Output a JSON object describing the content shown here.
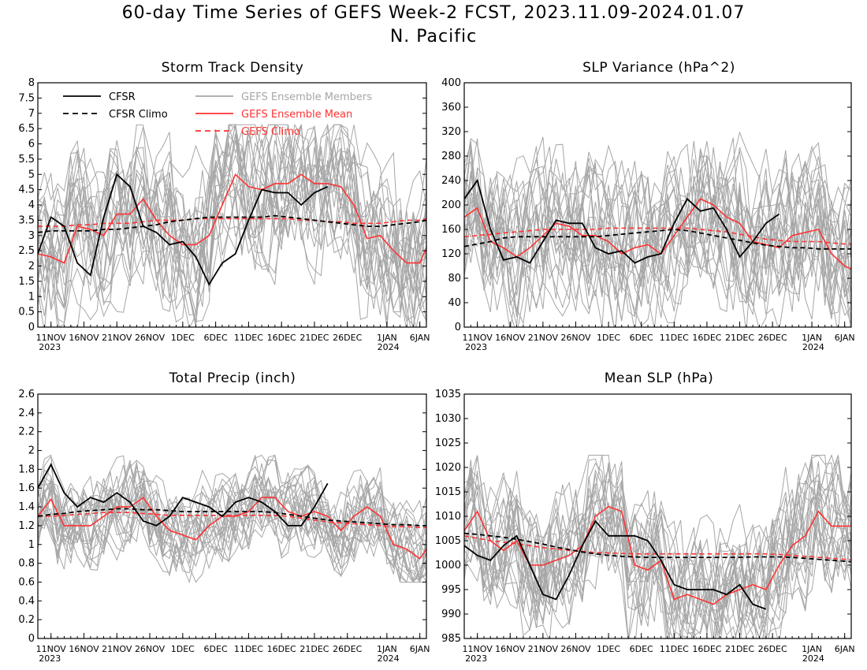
{
  "figure": {
    "title_line1": "60-day Time Series of GEFS Week-2 FCST, 2023.11.09-2024.01.07",
    "title_line2": "N. Pacific"
  },
  "colors": {
    "cfsr": "#000000",
    "ensemble_members": "#a6a6a6",
    "ensemble_mean": "#ff3333"
  },
  "x_axis": {
    "start_date": "2023-11-09",
    "end_date": "2024-01-07",
    "ticks": [
      {
        "date": "2023-11-11",
        "label": "11NOV",
        "year": "2023"
      },
      {
        "date": "2023-11-16",
        "label": "16NOV"
      },
      {
        "date": "2023-11-21",
        "label": "21NOV"
      },
      {
        "date": "2023-11-26",
        "label": "26NOV"
      },
      {
        "date": "2023-12-01",
        "label": "1DEC"
      },
      {
        "date": "2023-12-06",
        "label": "6DEC"
      },
      {
        "date": "2023-12-11",
        "label": "11DEC"
      },
      {
        "date": "2023-12-16",
        "label": "16DEC"
      },
      {
        "date": "2023-12-21",
        "label": "21DEC"
      },
      {
        "date": "2023-12-26",
        "label": "26DEC"
      },
      {
        "date": "2024-01-01",
        "label": "1JAN",
        "year": "2024"
      },
      {
        "date": "2024-01-06",
        "label": "6JAN"
      }
    ]
  },
  "legend": {
    "cfsr": "CFSR",
    "cfsr_climo": "CFSR Climo",
    "members": "GEFS Ensemble Members",
    "mean": "GEFS Ensemble Mean",
    "gefs_climo": "GEFS Climo"
  },
  "chart_data": [
    {
      "type": "line",
      "title": "Storm Track Density",
      "ylim": [
        0,
        8
      ],
      "yticks": [
        "0",
        "0.5",
        "1",
        "1.5",
        "2",
        "2.5",
        "3",
        "3.5",
        "4",
        "4.5",
        "5",
        "5.5",
        "6",
        "6.5",
        "7",
        "7.5",
        "8"
      ],
      "x": [
        "2023-11-09",
        "2023-11-11",
        "2023-11-13",
        "2023-11-15",
        "2023-11-17",
        "2023-11-19",
        "2023-11-21",
        "2023-11-23",
        "2023-11-25",
        "2023-11-27",
        "2023-11-29",
        "2023-12-01",
        "2023-12-03",
        "2023-12-05",
        "2023-12-07",
        "2023-12-09",
        "2023-12-11",
        "2023-12-13",
        "2023-12-15",
        "2023-12-17",
        "2023-12-19",
        "2023-12-21",
        "2023-12-23",
        "2023-12-25",
        "2023-12-27",
        "2023-12-29",
        "2023-12-31",
        "2024-01-02",
        "2024-01-04",
        "2024-01-06",
        "2024-01-07"
      ],
      "member_band": {
        "low": 0.3,
        "high": 5.8
      },
      "series": [
        {
          "name": "CFSR",
          "values": [
            2.4,
            3.6,
            3.3,
            2.1,
            1.7,
            3.6,
            5.0,
            4.6,
            3.3,
            3.1,
            2.7,
            2.8,
            2.3,
            1.4,
            2.1,
            2.4,
            3.5,
            4.5,
            4.4,
            4.4,
            4.0,
            4.4,
            4.6,
            null,
            null,
            null,
            null,
            null,
            null,
            null,
            null
          ]
        },
        {
          "name": "CFSR Climo",
          "values": [
            3.1,
            3.15,
            3.15,
            3.15,
            3.15,
            3.2,
            3.2,
            3.25,
            3.3,
            3.35,
            3.45,
            3.5,
            3.55,
            3.6,
            3.6,
            3.6,
            3.6,
            3.6,
            3.65,
            3.6,
            3.55,
            3.5,
            3.45,
            3.4,
            3.35,
            3.3,
            3.3,
            3.35,
            3.4,
            3.45,
            3.5
          ]
        },
        {
          "name": "GEFS Ensemble Mean",
          "values": [
            2.4,
            2.3,
            2.1,
            3.3,
            3.2,
            3.0,
            3.7,
            3.7,
            4.2,
            3.5,
            3.0,
            2.7,
            2.7,
            3.0,
            4.0,
            5.0,
            4.6,
            4.5,
            4.7,
            4.7,
            5.0,
            4.7,
            4.7,
            4.6,
            4.0,
            2.9,
            3.0,
            2.5,
            2.1,
            2.1,
            2.6
          ]
        },
        {
          "name": "GEFS Climo",
          "values": [
            3.3,
            3.3,
            3.3,
            3.35,
            3.35,
            3.4,
            3.4,
            3.4,
            3.45,
            3.5,
            3.5,
            3.5,
            3.55,
            3.55,
            3.55,
            3.55,
            3.55,
            3.55,
            3.55,
            3.55,
            3.5,
            3.5,
            3.45,
            3.45,
            3.4,
            3.4,
            3.4,
            3.45,
            3.5,
            3.5,
            3.55
          ]
        }
      ]
    },
    {
      "type": "line",
      "title": "SLP Variance (hPa^2)",
      "ylim": [
        0,
        400
      ],
      "yticks": [
        "0",
        "40",
        "80",
        "120",
        "160",
        "200",
        "240",
        "280",
        "320",
        "360",
        "400"
      ],
      "x": [
        "2023-11-09",
        "2023-11-11",
        "2023-11-13",
        "2023-11-15",
        "2023-11-17",
        "2023-11-19",
        "2023-11-21",
        "2023-11-23",
        "2023-11-25",
        "2023-11-27",
        "2023-11-29",
        "2023-12-01",
        "2023-12-03",
        "2023-12-05",
        "2023-12-07",
        "2023-12-09",
        "2023-12-11",
        "2023-12-13",
        "2023-12-15",
        "2023-12-17",
        "2023-12-19",
        "2023-12-21",
        "2023-12-23",
        "2023-12-25",
        "2023-12-27",
        "2023-12-29",
        "2023-12-31",
        "2024-01-02",
        "2024-01-04",
        "2024-01-06",
        "2024-01-07"
      ],
      "member_band": {
        "low": 45,
        "high": 330
      },
      "series": [
        {
          "name": "CFSR",
          "values": [
            210,
            240,
            160,
            110,
            115,
            105,
            140,
            175,
            170,
            170,
            130,
            120,
            125,
            105,
            115,
            120,
            170,
            210,
            190,
            195,
            160,
            115,
            140,
            170,
            185,
            null,
            null,
            null,
            null,
            null,
            null
          ]
        },
        {
          "name": "CFSR Climo",
          "values": [
            132,
            136,
            140,
            146,
            148,
            148,
            148,
            148,
            148,
            148,
            148,
            150,
            152,
            154,
            156,
            158,
            160,
            158,
            154,
            150,
            146,
            142,
            138,
            134,
            132,
            130,
            130,
            128,
            128,
            128,
            128
          ]
        },
        {
          "name": "GEFS Ensemble Mean",
          "values": [
            180,
            195,
            140,
            130,
            115,
            130,
            150,
            170,
            165,
            150,
            150,
            140,
            120,
            130,
            135,
            120,
            150,
            180,
            210,
            200,
            180,
            170,
            140,
            135,
            130,
            150,
            155,
            160,
            120,
            100,
            95
          ]
        },
        {
          "name": "GEFS Climo",
          "values": [
            148,
            150,
            152,
            154,
            156,
            158,
            160,
            160,
            160,
            160,
            160,
            162,
            162,
            162,
            162,
            162,
            162,
            162,
            160,
            158,
            156,
            152,
            148,
            144,
            142,
            140,
            140,
            140,
            138,
            136,
            136
          ]
        }
      ]
    },
    {
      "type": "line",
      "title": "Total Precip (inch)",
      "ylim": [
        0,
        2.6
      ],
      "yticks": [
        "0",
        "0.2",
        "0.4",
        "0.6",
        "0.8",
        "1",
        "1.2",
        "1.4",
        "1.6",
        "1.8",
        "2",
        "2.2",
        "2.4",
        "2.6"
      ],
      "x": [
        "2023-11-09",
        "2023-11-11",
        "2023-11-13",
        "2023-11-15",
        "2023-11-17",
        "2023-11-19",
        "2023-11-21",
        "2023-11-23",
        "2023-11-25",
        "2023-11-27",
        "2023-11-29",
        "2023-12-01",
        "2023-12-03",
        "2023-12-05",
        "2023-12-07",
        "2023-12-09",
        "2023-12-11",
        "2023-12-13",
        "2023-12-15",
        "2023-12-17",
        "2023-12-19",
        "2023-12-21",
        "2023-12-23",
        "2023-12-25",
        "2023-12-27",
        "2023-12-29",
        "2023-12-31",
        "2024-01-02",
        "2024-01-04",
        "2024-01-06",
        "2024-01-07"
      ],
      "member_band": {
        "low": 0.8,
        "high": 1.8
      },
      "series": [
        {
          "name": "CFSR",
          "values": [
            1.6,
            1.85,
            1.55,
            1.4,
            1.5,
            1.45,
            1.55,
            1.45,
            1.25,
            1.2,
            1.3,
            1.5,
            1.45,
            1.4,
            1.3,
            1.45,
            1.5,
            1.45,
            1.35,
            1.2,
            1.2,
            1.4,
            1.65,
            null,
            null,
            null,
            null,
            null,
            null,
            null,
            null
          ]
        },
        {
          "name": "CFSR Climo",
          "values": [
            1.3,
            1.32,
            1.33,
            1.35,
            1.36,
            1.37,
            1.38,
            1.38,
            1.37,
            1.37,
            1.36,
            1.35,
            1.35,
            1.35,
            1.35,
            1.35,
            1.35,
            1.35,
            1.34,
            1.32,
            1.3,
            1.28,
            1.26,
            1.25,
            1.24,
            1.23,
            1.22,
            1.21,
            1.21,
            1.2,
            1.2
          ]
        },
        {
          "name": "GEFS Ensemble Mean",
          "values": [
            1.3,
            1.48,
            1.2,
            1.2,
            1.2,
            1.3,
            1.4,
            1.4,
            1.5,
            1.3,
            1.15,
            1.1,
            1.05,
            1.2,
            1.3,
            1.3,
            1.35,
            1.5,
            1.5,
            1.35,
            1.3,
            1.35,
            1.3,
            1.15,
            1.3,
            1.4,
            1.3,
            1.0,
            0.95,
            0.85,
            0.95
          ]
        },
        {
          "name": "GEFS Climo",
          "values": [
            1.3,
            1.3,
            1.31,
            1.32,
            1.33,
            1.34,
            1.34,
            1.34,
            1.33,
            1.32,
            1.31,
            1.31,
            1.31,
            1.31,
            1.31,
            1.31,
            1.31,
            1.31,
            1.31,
            1.3,
            1.28,
            1.26,
            1.24,
            1.23,
            1.22,
            1.21,
            1.2,
            1.19,
            1.19,
            1.18,
            1.18
          ]
        }
      ]
    },
    {
      "type": "line",
      "title": "Mean SLP (hPa)",
      "ylim": [
        985,
        1035
      ],
      "yticks": [
        "985",
        "990",
        "995",
        "1000",
        "1005",
        "1010",
        "1015",
        "1020",
        "1025",
        "1030",
        "1035"
      ],
      "x": [
        "2023-11-09",
        "2023-11-11",
        "2023-11-13",
        "2023-11-15",
        "2023-11-17",
        "2023-11-19",
        "2023-11-21",
        "2023-11-23",
        "2023-11-25",
        "2023-11-27",
        "2023-11-29",
        "2023-12-01",
        "2023-12-03",
        "2023-12-05",
        "2023-12-07",
        "2023-12-09",
        "2023-12-11",
        "2023-12-13",
        "2023-12-15",
        "2023-12-17",
        "2023-12-19",
        "2023-12-21",
        "2023-12-23",
        "2023-12-25",
        "2023-12-27",
        "2023-12-29",
        "2023-12-31",
        "2024-01-02",
        "2024-01-04",
        "2024-01-06",
        "2024-01-07"
      ],
      "member_band": {
        "low": 988,
        "high": 1018
      },
      "series": [
        {
          "name": "CFSR",
          "values": [
            1004,
            1002,
            1001,
            1004,
            1006,
            1000,
            994,
            993,
            998,
            1004,
            1009,
            1006,
            1006,
            1006,
            1005,
            1001,
            996,
            995,
            995,
            995,
            994,
            996,
            992,
            991,
            null,
            null,
            null,
            null,
            null,
            null,
            null
          ]
        },
        {
          "name": "CFSR Climo",
          "values": [
            1006.5,
            1006.3,
            1006,
            1005.7,
            1005.3,
            1004.8,
            1004.3,
            1003.7,
            1003.2,
            1002.7,
            1002.3,
            1002,
            1001.8,
            1001.7,
            1001.6,
            1001.6,
            1001.6,
            1001.6,
            1001.6,
            1001.6,
            1001.6,
            1001.6,
            1001.7,
            1001.7,
            1001.7,
            1001.6,
            1001.4,
            1001.2,
            1001,
            1000.8,
            1000.7
          ]
        },
        {
          "name": "GEFS Ensemble Mean",
          "values": [
            1007,
            1011,
            1005,
            1003,
            1005,
            1000,
            1000,
            1001,
            1002,
            1004,
            1010,
            1012,
            1011,
            1000,
            999,
            1001,
            993,
            994,
            993,
            992,
            994,
            995,
            996,
            995,
            1000,
            1004,
            1006,
            1011,
            1008,
            1008,
            1008
          ]
        },
        {
          "name": "GEFS Climo",
          "values": [
            1006,
            1005.5,
            1005,
            1004.7,
            1004.4,
            1004,
            1003.6,
            1003.3,
            1003,
            1002.8,
            1002.6,
            1002.5,
            1002.4,
            1002.3,
            1002.3,
            1002.3,
            1002.3,
            1002.3,
            1002.3,
            1002.3,
            1002.3,
            1002.3,
            1002.3,
            1002.3,
            1002.2,
            1002,
            1001.8,
            1001.6,
            1001.4,
            1001.2,
            1001.1
          ]
        }
      ]
    }
  ]
}
